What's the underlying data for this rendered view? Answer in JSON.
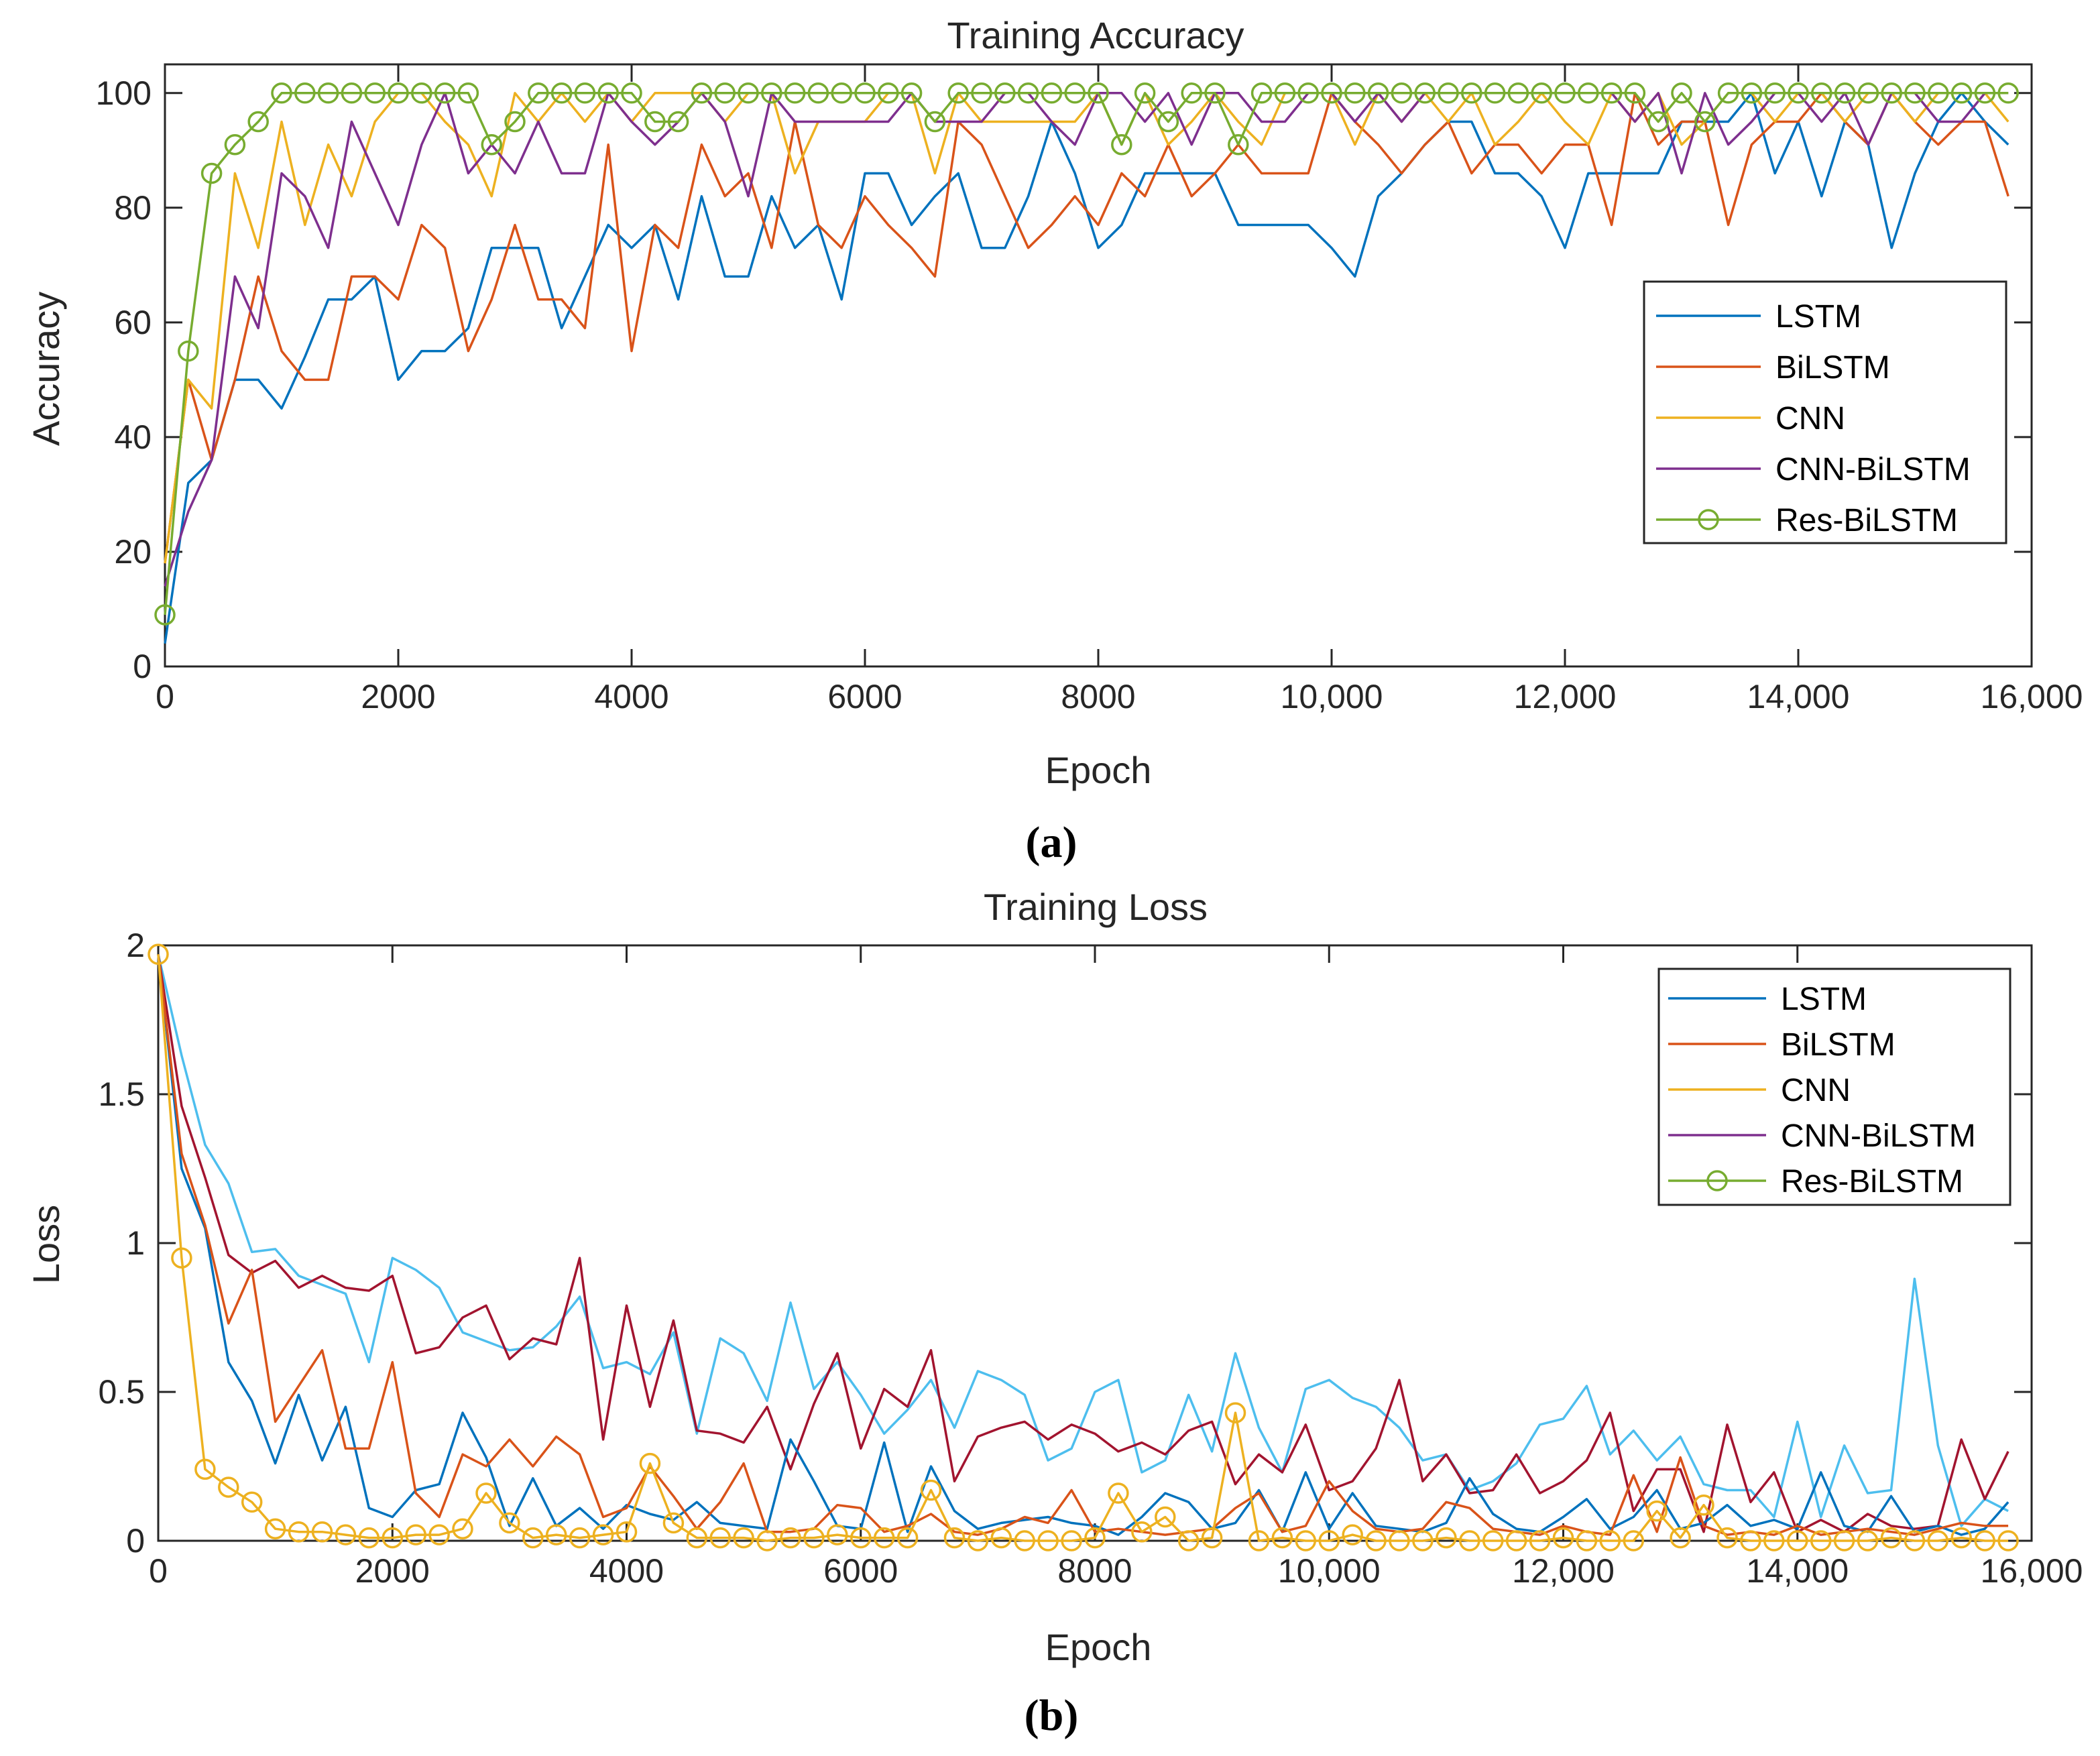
{
  "chart_data": [
    {
      "type": "line",
      "panel": "a",
      "caption": "(a)",
      "title": "Training Accuracy",
      "xlabel": "Epoch",
      "ylabel": "Accuracy",
      "xlim": [
        0,
        16000
      ],
      "ylim": [
        0,
        105
      ],
      "xticks": [
        0,
        2000,
        4000,
        6000,
        8000,
        10000,
        12000,
        14000,
        16000
      ],
      "xtick_labels": [
        "0",
        "2000",
        "4000",
        "6000",
        "8000",
        "10,000",
        "12,000",
        "14,000",
        "16,000"
      ],
      "yticks": [
        0,
        20,
        40,
        60,
        80,
        100
      ],
      "ytick_labels": [
        "0",
        "20",
        "40",
        "60",
        "80",
        "100"
      ],
      "legend_position": "right",
      "x": [
        0,
        200,
        400,
        600,
        800,
        1000,
        1200,
        1400,
        1600,
        1800,
        2000,
        2200,
        2400,
        2600,
        2800,
        3000,
        3200,
        3400,
        3600,
        3800,
        4000,
        4200,
        4400,
        4600,
        4800,
        5000,
        5200,
        5400,
        5600,
        5800,
        6000,
        6200,
        6400,
        6600,
        6800,
        7000,
        7200,
        7400,
        7600,
        7800,
        8000,
        8200,
        8400,
        8600,
        8800,
        9000,
        9200,
        9400,
        9600,
        9800,
        10000,
        10200,
        10400,
        10600,
        10800,
        11000,
        11200,
        11400,
        11600,
        11800,
        12000,
        12200,
        12400,
        12600,
        12800,
        13000,
        13200,
        13400,
        13600,
        13800,
        14000,
        14200,
        14400,
        14600,
        14800,
        15000,
        15200,
        15400,
        15600,
        15800
      ],
      "series": [
        {
          "name": "LSTM",
          "color": "#0072BD",
          "marker": "none",
          "values": [
            4,
            32,
            36,
            50,
            50,
            45,
            54,
            64,
            64,
            68,
            50,
            55,
            55,
            59,
            73,
            73,
            73,
            59,
            68,
            77,
            73,
            77,
            64,
            82,
            68,
            68,
            82,
            73,
            77,
            64,
            86,
            86,
            77,
            82,
            86,
            73,
            73,
            82,
            95,
            86,
            73,
            77,
            86,
            86,
            86,
            86,
            77,
            77,
            77,
            77,
            73,
            68,
            82,
            86,
            91,
            95,
            95,
            86,
            86,
            82,
            73,
            86,
            86,
            86,
            86,
            95,
            95,
            95,
            100,
            86,
            95,
            82,
            95,
            91,
            73,
            86,
            95,
            100,
            95,
            91
          ]
        },
        {
          "name": "BiLSTM",
          "color": "#D95319",
          "marker": "none",
          "values": [
            18,
            50,
            36,
            50,
            68,
            55,
            50,
            50,
            68,
            68,
            64,
            77,
            73,
            55,
            64,
            77,
            64,
            64,
            59,
            91,
            55,
            77,
            73,
            91,
            82,
            86,
            73,
            95,
            77,
            73,
            82,
            77,
            73,
            68,
            95,
            91,
            82,
            73,
            77,
            82,
            77,
            86,
            82,
            91,
            82,
            86,
            91,
            86,
            86,
            86,
            100,
            95,
            91,
            86,
            91,
            95,
            86,
            91,
            91,
            86,
            91,
            91,
            77,
            100,
            91,
            95,
            95,
            77,
            91,
            95,
            95,
            100,
            95,
            91,
            100,
            95,
            91,
            95,
            95,
            82
          ]
        },
        {
          "name": "CNN",
          "color": "#EDB120",
          "marker": "none",
          "values": [
            18,
            50,
            45,
            86,
            73,
            95,
            77,
            91,
            82,
            95,
            100,
            100,
            95,
            91,
            82,
            100,
            95,
            100,
            95,
            100,
            95,
            100,
            100,
            100,
            95,
            100,
            100,
            86,
            95,
            95,
            95,
            100,
            100,
            86,
            100,
            95,
            95,
            95,
            95,
            95,
            100,
            91,
            100,
            91,
            95,
            100,
            95,
            91,
            100,
            100,
            100,
            91,
            100,
            95,
            100,
            95,
            100,
            91,
            95,
            100,
            95,
            91,
            100,
            95,
            100,
            91,
            95,
            100,
            100,
            95,
            100,
            100,
            95,
            100,
            100,
            95,
            100,
            100,
            100,
            95
          ]
        },
        {
          "name": "CNN-BiLSTM",
          "color": "#7E2F8E",
          "marker": "none",
          "values": [
            14,
            27,
            36,
            68,
            59,
            86,
            82,
            73,
            95,
            86,
            77,
            91,
            100,
            86,
            91,
            86,
            95,
            86,
            86,
            100,
            95,
            91,
            95,
            100,
            95,
            82,
            100,
            95,
            95,
            95,
            95,
            95,
            100,
            95,
            95,
            95,
            100,
            100,
            95,
            91,
            100,
            100,
            95,
            100,
            91,
            100,
            100,
            95,
            95,
            100,
            100,
            95,
            100,
            95,
            100,
            100,
            100,
            100,
            100,
            100,
            100,
            100,
            100,
            95,
            100,
            86,
            100,
            91,
            95,
            100,
            100,
            95,
            100,
            91,
            100,
            100,
            95,
            95,
            100,
            100
          ]
        },
        {
          "name": "Res-BiLSTM",
          "color": "#77AC30",
          "marker": "circle",
          "values": [
            9,
            55,
            86,
            91,
            95,
            100,
            100,
            100,
            100,
            100,
            100,
            100,
            100,
            100,
            91,
            95,
            100,
            100,
            100,
            100,
            100,
            95,
            95,
            100,
            100,
            100,
            100,
            100,
            100,
            100,
            100,
            100,
            100,
            95,
            100,
            100,
            100,
            100,
            100,
            100,
            100,
            91,
            100,
            95,
            100,
            100,
            91,
            100,
            100,
            100,
            100,
            100,
            100,
            100,
            100,
            100,
            100,
            100,
            100,
            100,
            100,
            100,
            100,
            100,
            95,
            100,
            95,
            100,
            100,
            100,
            100,
            100,
            100,
            100,
            100,
            100,
            100,
            100,
            100,
            100
          ]
        }
      ]
    },
    {
      "type": "line",
      "panel": "b",
      "caption": "(b)",
      "title": "Training Loss",
      "xlabel": "Epoch",
      "ylabel": "Loss",
      "xlim": [
        0,
        16000
      ],
      "ylim": [
        0,
        2
      ],
      "xticks": [
        0,
        2000,
        4000,
        6000,
        8000,
        10000,
        12000,
        14000,
        16000
      ],
      "xtick_labels": [
        "0",
        "2000",
        "4000",
        "6000",
        "8000",
        "10,000",
        "12,000",
        "14,000",
        "16,000"
      ],
      "yticks": [
        0,
        0.5,
        1,
        1.5,
        2
      ],
      "ytick_labels": [
        "0",
        "0.5",
        "1",
        "1.5",
        "2"
      ],
      "legend_position": "top-right",
      "legend": [
        {
          "name": "LSTM",
          "color": "#0072BD",
          "marker": "none"
        },
        {
          "name": "BiLSTM",
          "color": "#D95319",
          "marker": "none"
        },
        {
          "name": "CNN",
          "color": "#EDB120",
          "marker": "none"
        },
        {
          "name": "CNN-BiLSTM",
          "color": "#7E2F8E",
          "marker": "none"
        },
        {
          "name": "Res-BiLSTM",
          "color": "#77AC30",
          "marker": "circle"
        }
      ],
      "x": [
        0,
        200,
        400,
        600,
        800,
        1000,
        1200,
        1400,
        1600,
        1800,
        2000,
        2200,
        2400,
        2600,
        2800,
        3000,
        3200,
        3400,
        3600,
        3800,
        4000,
        4200,
        4400,
        4600,
        4800,
        5000,
        5200,
        5400,
        5600,
        5800,
        6000,
        6200,
        6400,
        6600,
        6800,
        7000,
        7200,
        7400,
        7600,
        7800,
        8000,
        8200,
        8400,
        8600,
        8800,
        9000,
        9200,
        9400,
        9600,
        9800,
        10000,
        10200,
        10400,
        10600,
        10800,
        11000,
        11200,
        11400,
        11600,
        11800,
        12000,
        12200,
        12400,
        12600,
        12800,
        13000,
        13200,
        13400,
        13600,
        13800,
        14000,
        14200,
        14400,
        14600,
        14800,
        15000,
        15200,
        15400,
        15600,
        15800
      ],
      "series": [
        {
          "name": "light-blue line",
          "color": "#4DBEEE",
          "marker": "none",
          "values": [
            1.97,
            1.63,
            1.33,
            1.2,
            0.97,
            0.98,
            0.89,
            0.86,
            0.83,
            0.6,
            0.95,
            0.91,
            0.85,
            0.7,
            0.67,
            0.64,
            0.65,
            0.72,
            0.82,
            0.58,
            0.6,
            0.56,
            0.7,
            0.36,
            0.68,
            0.63,
            0.47,
            0.8,
            0.51,
            0.6,
            0.49,
            0.36,
            0.44,
            0.54,
            0.38,
            0.57,
            0.54,
            0.49,
            0.27,
            0.31,
            0.5,
            0.54,
            0.23,
            0.27,
            0.49,
            0.3,
            0.63,
            0.38,
            0.23,
            0.51,
            0.54,
            0.48,
            0.45,
            0.38,
            0.27,
            0.29,
            0.17,
            0.2,
            0.26,
            0.39,
            0.41,
            0.52,
            0.29,
            0.37,
            0.27,
            0.35,
            0.19,
            0.17,
            0.17,
            0.08,
            0.4,
            0.08,
            0.32,
            0.16,
            0.17,
            0.88,
            0.32,
            0.05,
            0.14,
            0.1
          ]
        },
        {
          "name": "dark-red line",
          "color": "#A2142F",
          "marker": "none",
          "values": [
            1.97,
            1.46,
            1.22,
            0.96,
            0.9,
            0.94,
            0.85,
            0.89,
            0.85,
            0.84,
            0.89,
            0.63,
            0.65,
            0.75,
            0.79,
            0.61,
            0.68,
            0.66,
            0.95,
            0.34,
            0.79,
            0.45,
            0.74,
            0.37,
            0.36,
            0.33,
            0.45,
            0.24,
            0.46,
            0.63,
            0.31,
            0.51,
            0.45,
            0.64,
            0.2,
            0.35,
            0.38,
            0.4,
            0.34,
            0.39,
            0.36,
            0.3,
            0.33,
            0.29,
            0.37,
            0.4,
            0.19,
            0.29,
            0.23,
            0.39,
            0.17,
            0.2,
            0.31,
            0.54,
            0.2,
            0.29,
            0.16,
            0.17,
            0.29,
            0.16,
            0.2,
            0.27,
            0.43,
            0.1,
            0.24,
            0.24,
            0.03,
            0.39,
            0.13,
            0.23,
            0.03,
            0.07,
            0.03,
            0.09,
            0.05,
            0.04,
            0.05,
            0.34,
            0.14,
            0.3
          ]
        },
        {
          "name": "LSTM",
          "color": "#0072BD",
          "marker": "none",
          "values": [
            1.97,
            1.25,
            1.05,
            0.6,
            0.47,
            0.26,
            0.49,
            0.27,
            0.45,
            0.11,
            0.08,
            0.17,
            0.19,
            0.43,
            0.28,
            0.05,
            0.21,
            0.05,
            0.11,
            0.04,
            0.12,
            0.09,
            0.07,
            0.13,
            0.06,
            0.05,
            0.04,
            0.34,
            0.2,
            0.05,
            0.04,
            0.33,
            0.03,
            0.25,
            0.1,
            0.04,
            0.06,
            0.07,
            0.08,
            0.06,
            0.05,
            0.02,
            0.08,
            0.16,
            0.13,
            0.04,
            0.06,
            0.17,
            0.03,
            0.23,
            0.04,
            0.16,
            0.05,
            0.04,
            0.03,
            0.06,
            0.21,
            0.09,
            0.04,
            0.03,
            0.08,
            0.14,
            0.04,
            0.08,
            0.17,
            0.04,
            0.06,
            0.12,
            0.05,
            0.07,
            0.04,
            0.23,
            0.05,
            0.03,
            0.15,
            0.03,
            0.05,
            0.02,
            0.04,
            0.13
          ]
        },
        {
          "name": "BiLSTM",
          "color": "#D95319",
          "marker": "none",
          "values": [
            1.97,
            1.3,
            1.06,
            0.73,
            0.91,
            0.4,
            0.52,
            0.64,
            0.31,
            0.31,
            0.6,
            0.16,
            0.08,
            0.29,
            0.25,
            0.34,
            0.25,
            0.35,
            0.29,
            0.08,
            0.11,
            0.25,
            0.15,
            0.04,
            0.13,
            0.26,
            0.03,
            0.03,
            0.04,
            0.12,
            0.11,
            0.03,
            0.05,
            0.09,
            0.03,
            0.02,
            0.04,
            0.08,
            0.06,
            0.17,
            0.03,
            0.04,
            0.03,
            0.02,
            0.03,
            0.04,
            0.11,
            0.16,
            0.03,
            0.05,
            0.2,
            0.1,
            0.04,
            0.03,
            0.04,
            0.13,
            0.11,
            0.04,
            0.03,
            0.02,
            0.05,
            0.03,
            0.02,
            0.22,
            0.03,
            0.28,
            0.05,
            0.02,
            0.03,
            0.02,
            0.05,
            0.02,
            0.03,
            0.04,
            0.03,
            0.02,
            0.04,
            0.06,
            0.05,
            0.05
          ]
        },
        {
          "name": "CNN",
          "color": "#EDB120",
          "marker": "circle",
          "values": [
            1.97,
            0.95,
            0.24,
            0.18,
            0.13,
            0.04,
            0.03,
            0.03,
            0.02,
            0.01,
            0.01,
            0.02,
            0.02,
            0.04,
            0.16,
            0.06,
            0.01,
            0.02,
            0.01,
            0.02,
            0.03,
            0.26,
            0.06,
            0.01,
            0.01,
            0.01,
            0.0,
            0.01,
            0.01,
            0.02,
            0.01,
            0.01,
            0.01,
            0.17,
            0.01,
            0.0,
            0.01,
            0.0,
            0.0,
            0.0,
            0.01,
            0.16,
            0.03,
            0.08,
            0.0,
            0.01,
            0.43,
            0.0,
            0.01,
            0.0,
            0.0,
            0.02,
            0.0,
            0.0,
            0.0,
            0.01,
            0.0,
            0.0,
            0.0,
            0.0,
            0.01,
            0.0,
            0.0,
            0.0,
            0.1,
            0.01,
            0.12,
            0.01,
            0.0,
            0.0,
            0.0,
            0.0,
            0.0,
            0.0,
            0.01,
            0.0,
            0.0,
            0.01,
            0.0,
            0.0
          ]
        }
      ]
    }
  ]
}
